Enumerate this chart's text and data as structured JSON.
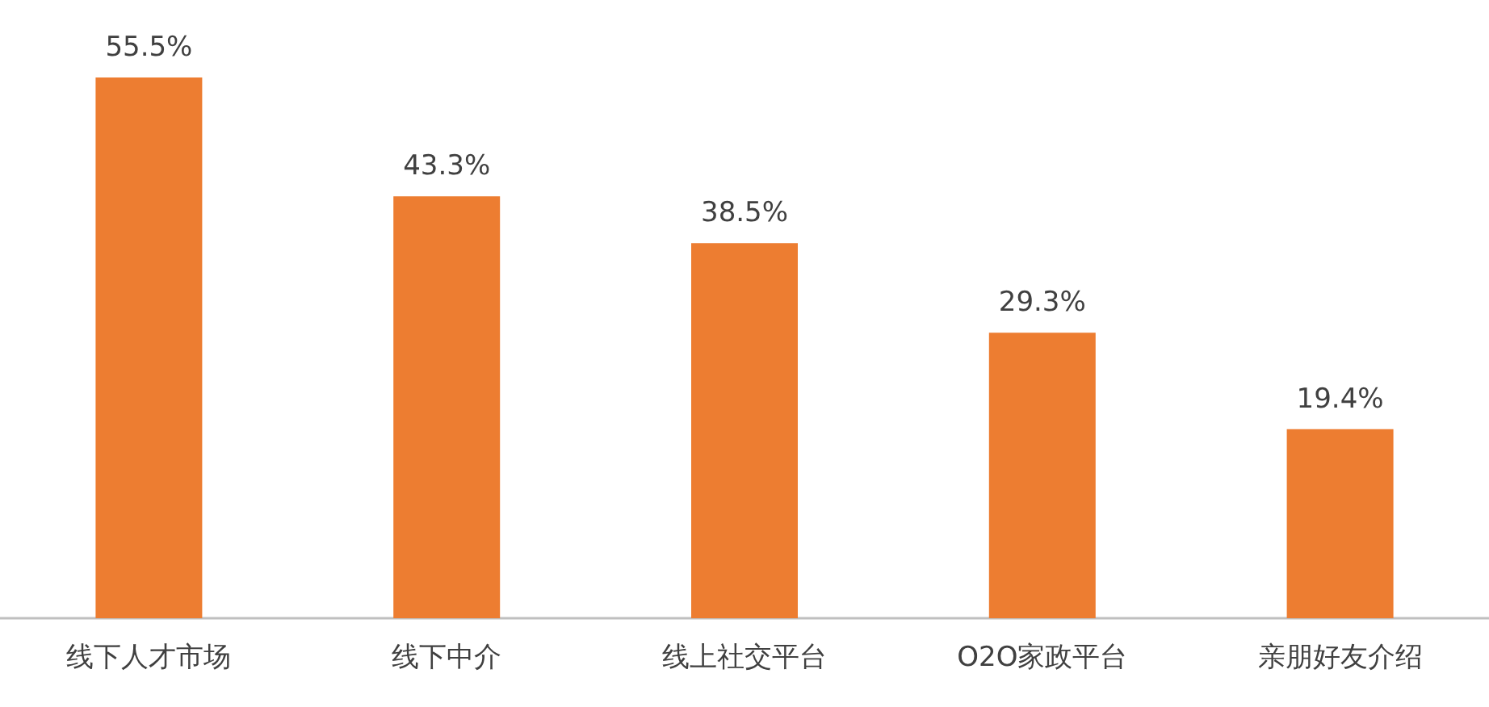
{
  "chart_data": {
    "type": "bar",
    "categories": [
      "线下人才市场",
      "线下中介",
      "线上社交平台",
      "O2O家政平台",
      "亲朋好友介绍"
    ],
    "values": [
      55.5,
      43.3,
      38.5,
      29.3,
      19.4
    ],
    "value_labels": [
      "55.5%",
      "43.3%",
      "38.5%",
      "29.3%",
      "19.4%"
    ],
    "color": "#ed7d31",
    "tick_labels": "x",
    "grid": false
  }
}
